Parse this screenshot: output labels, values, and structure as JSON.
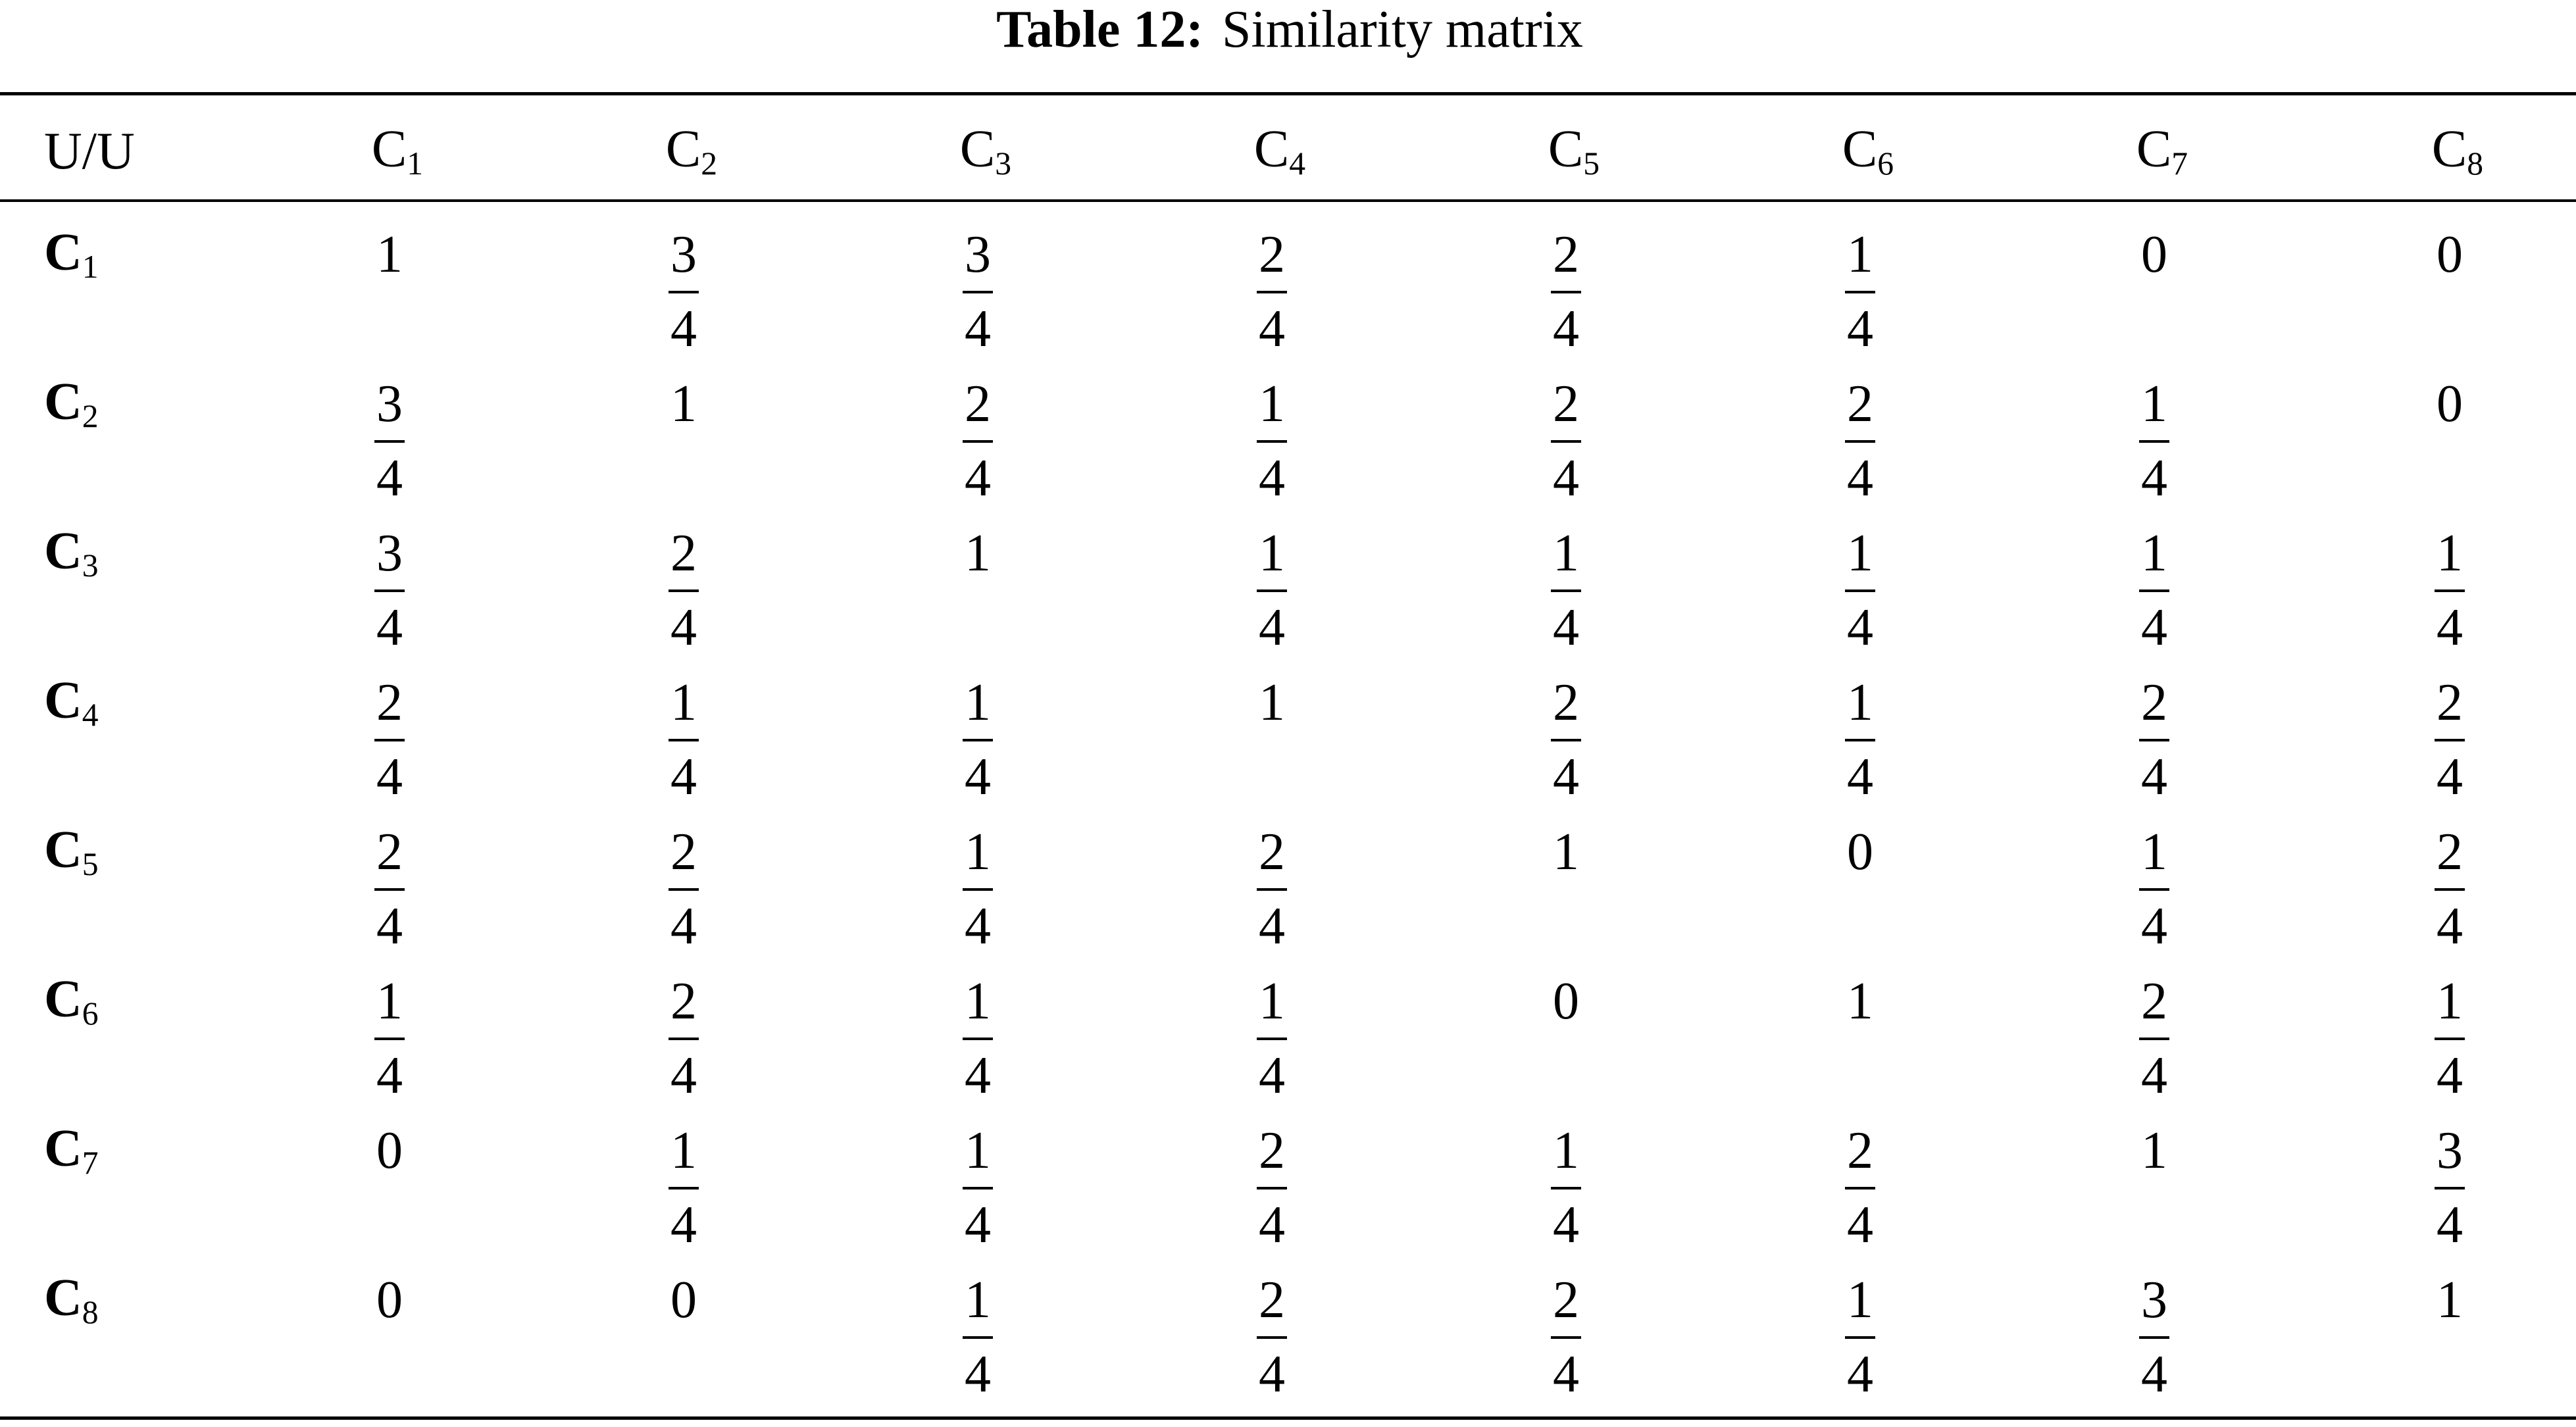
{
  "title": {
    "label": "Table 12:",
    "text": "Similarity matrix"
  },
  "table": {
    "header": [
      "U/U",
      {
        "base": "C",
        "sub": "1"
      },
      {
        "base": "C",
        "sub": "2"
      },
      {
        "base": "C",
        "sub": "3"
      },
      {
        "base": "C",
        "sub": "4"
      },
      {
        "base": "C",
        "sub": "5"
      },
      {
        "base": "C",
        "sub": "6"
      },
      {
        "base": "C",
        "sub": "7"
      },
      {
        "base": "C",
        "sub": "8"
      }
    ],
    "rows": [
      [
        {
          "base": "C",
          "sub": "1"
        },
        "1",
        {
          "num": "3",
          "den": "4"
        },
        {
          "num": "3",
          "den": "4"
        },
        {
          "num": "2",
          "den": "4"
        },
        {
          "num": "2",
          "den": "4"
        },
        {
          "num": "1",
          "den": "4"
        },
        "0",
        "0"
      ],
      [
        {
          "base": "C",
          "sub": "2"
        },
        {
          "num": "3",
          "den": "4"
        },
        "1",
        {
          "num": "2",
          "den": "4"
        },
        {
          "num": "1",
          "den": "4"
        },
        {
          "num": "2",
          "den": "4"
        },
        {
          "num": "2",
          "den": "4"
        },
        {
          "num": "1",
          "den": "4"
        },
        "0"
      ],
      [
        {
          "base": "C",
          "sub": "3"
        },
        {
          "num": "3",
          "den": "4"
        },
        {
          "num": "2",
          "den": "4"
        },
        "1",
        {
          "num": "1",
          "den": "4"
        },
        {
          "num": "1",
          "den": "4"
        },
        {
          "num": "1",
          "den": "4"
        },
        {
          "num": "1",
          "den": "4"
        },
        {
          "num": "1",
          "den": "4"
        }
      ],
      [
        {
          "base": "C",
          "sub": "4"
        },
        {
          "num": "2",
          "den": "4"
        },
        {
          "num": "1",
          "den": "4"
        },
        {
          "num": "1",
          "den": "4"
        },
        "1",
        {
          "num": "2",
          "den": "4"
        },
        {
          "num": "1",
          "den": "4"
        },
        {
          "num": "2",
          "den": "4"
        },
        {
          "num": "2",
          "den": "4"
        }
      ],
      [
        {
          "base": "C",
          "sub": "5"
        },
        {
          "num": "2",
          "den": "4"
        },
        {
          "num": "2",
          "den": "4"
        },
        {
          "num": "1",
          "den": "4"
        },
        {
          "num": "2",
          "den": "4"
        },
        "1",
        "0",
        {
          "num": "1",
          "den": "4"
        },
        {
          "num": "2",
          "den": "4"
        }
      ],
      [
        {
          "base": "C",
          "sub": "6"
        },
        {
          "num": "1",
          "den": "4"
        },
        {
          "num": "2",
          "den": "4"
        },
        {
          "num": "1",
          "den": "4"
        },
        {
          "num": "1",
          "den": "4"
        },
        "0",
        "1",
        {
          "num": "2",
          "den": "4"
        },
        {
          "num": "1",
          "den": "4"
        }
      ],
      [
        {
          "base": "C",
          "sub": "7"
        },
        "0",
        {
          "num": "1",
          "den": "4"
        },
        {
          "num": "1",
          "den": "4"
        },
        {
          "num": "2",
          "den": "4"
        },
        {
          "num": "1",
          "den": "4"
        },
        {
          "num": "2",
          "den": "4"
        },
        "1",
        {
          "num": "3",
          "den": "4"
        }
      ],
      [
        {
          "base": "C",
          "sub": "8"
        },
        "0",
        "0",
        {
          "num": "1",
          "den": "4"
        },
        {
          "num": "2",
          "den": "4"
        },
        {
          "num": "2",
          "den": "4"
        },
        {
          "num": "1",
          "den": "4"
        },
        {
          "num": "3",
          "den": "4"
        },
        "1"
      ]
    ]
  }
}
